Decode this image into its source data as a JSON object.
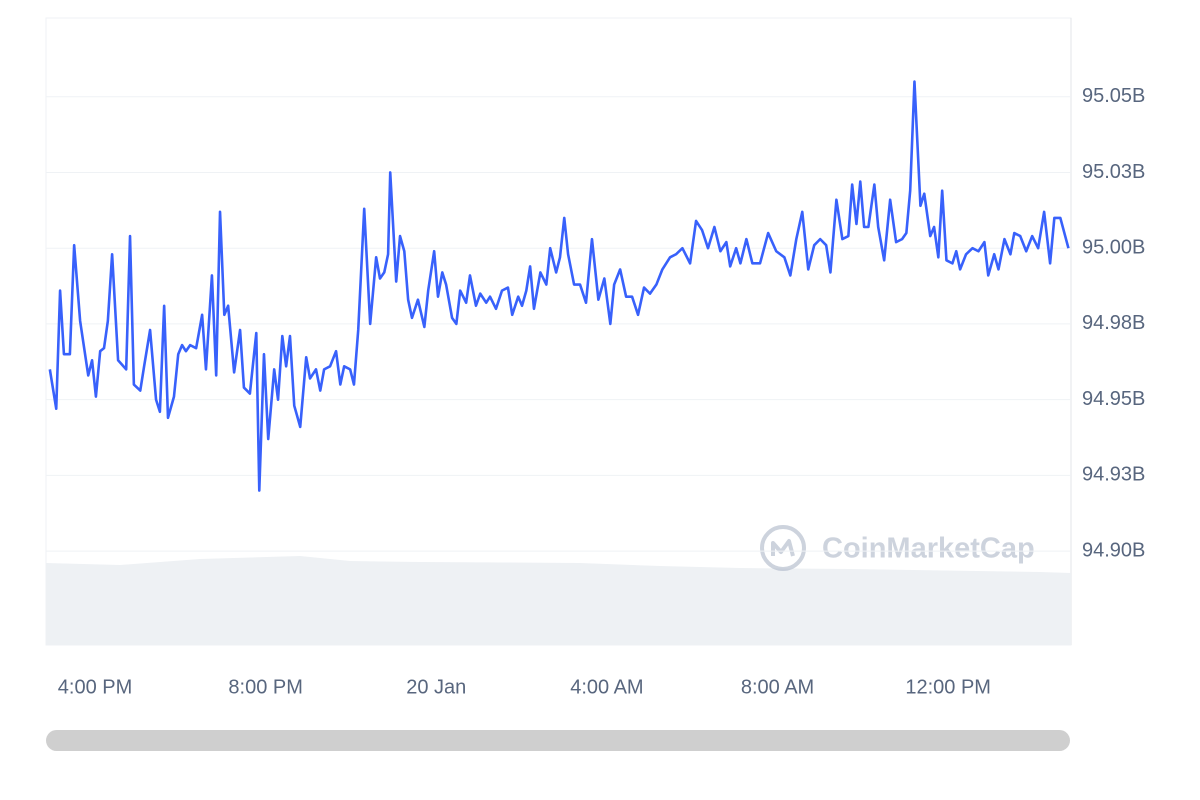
{
  "chart_data": {
    "type": "line",
    "color": "#3861fb",
    "grid": true,
    "watermark": "CoinMarketCap",
    "xlim": [
      14.85,
      38.88
    ],
    "xticks": [
      {
        "value": 16,
        "label": "4:00 PM"
      },
      {
        "value": 20,
        "label": "8:00 PM"
      },
      {
        "value": 24,
        "label": "20 Jan"
      },
      {
        "value": 28,
        "label": "4:00 AM"
      },
      {
        "value": 32,
        "label": "8:00 AM"
      },
      {
        "value": 36,
        "label": "12:00 PM"
      }
    ],
    "ylim": [
      94.869,
      95.076
    ],
    "yticks": [
      {
        "value": 94.9,
        "label": "94.90B"
      },
      {
        "value": 94.925,
        "label": "94.93B"
      },
      {
        "value": 94.95,
        "label": "94.95B"
      },
      {
        "value": 94.975,
        "label": "94.98B"
      },
      {
        "value": 95.0,
        "label": "95.00B"
      },
      {
        "value": 95.025,
        "label": "95.03B"
      },
      {
        "value": 95.05,
        "label": "95.05B"
      }
    ],
    "x": [
      14.94,
      15.09,
      15.18,
      15.27,
      15.41,
      15.51,
      15.65,
      15.84,
      15.93,
      16.02,
      16.12,
      16.21,
      16.3,
      16.4,
      16.54,
      16.73,
      16.82,
      16.91,
      17.06,
      17.15,
      17.29,
      17.43,
      17.52,
      17.62,
      17.71,
      17.85,
      17.95,
      18.04,
      18.13,
      18.23,
      18.37,
      18.51,
      18.6,
      18.74,
      18.84,
      18.93,
      19.03,
      19.12,
      19.26,
      19.4,
      19.49,
      19.63,
      19.78,
      19.85,
      19.96,
      20.06,
      20.2,
      20.29,
      20.39,
      20.48,
      20.57,
      20.67,
      20.81,
      20.95,
      21.04,
      21.18,
      21.28,
      21.37,
      21.51,
      21.65,
      21.75,
      21.84,
      21.98,
      22.07,
      22.17,
      22.31,
      22.45,
      22.59,
      22.68,
      22.78,
      22.87,
      22.92,
      23.06,
      23.15,
      23.25,
      23.34,
      23.43,
      23.57,
      23.72,
      23.81,
      23.95,
      24.04,
      24.14,
      24.23,
      24.37,
      24.47,
      24.56,
      24.7,
      24.79,
      24.93,
      25.03,
      25.17,
      25.26,
      25.4,
      25.54,
      25.68,
      25.78,
      25.92,
      26.01,
      26.11,
      26.2,
      26.29,
      26.44,
      26.58,
      26.67,
      26.81,
      26.9,
      27.0,
      27.09,
      27.23,
      27.37,
      27.51,
      27.65,
      27.8,
      27.94,
      28.08,
      28.17,
      28.31,
      28.45,
      28.59,
      28.73,
      28.87,
      29.01,
      29.16,
      29.3,
      29.48,
      29.62,
      29.77,
      29.95,
      30.09,
      30.23,
      30.37,
      30.52,
      30.66,
      30.8,
      30.89,
      31.03,
      31.13,
      31.27,
      31.41,
      31.59,
      31.78,
      31.97,
      32.16,
      32.3,
      32.44,
      32.58,
      32.72,
      32.86,
      33.0,
      33.14,
      33.24,
      33.38,
      33.52,
      33.66,
      33.75,
      33.85,
      33.94,
      34.03,
      34.13,
      34.27,
      34.36,
      34.5,
      34.64,
      34.78,
      34.92,
      35.02,
      35.11,
      35.21,
      35.35,
      35.44,
      35.58,
      35.67,
      35.77,
      35.86,
      35.96,
      36.1,
      36.19,
      36.28,
      36.42,
      36.57,
      36.71,
      36.85,
      36.94,
      37.08,
      37.18,
      37.32,
      37.46,
      37.55,
      37.69,
      37.83,
      37.97,
      38.11,
      38.25,
      38.39,
      38.49,
      38.63,
      38.82
    ],
    "values": [
      94.96,
      94.947,
      94.986,
      94.965,
      94.965,
      95.001,
      94.976,
      94.958,
      94.963,
      94.951,
      94.966,
      94.967,
      94.976,
      94.998,
      94.963,
      94.96,
      95.004,
      94.955,
      94.953,
      94.961,
      94.973,
      94.95,
      94.946,
      94.981,
      94.944,
      94.951,
      94.965,
      94.968,
      94.966,
      94.968,
      94.967,
      94.978,
      94.96,
      94.991,
      94.958,
      95.012,
      94.978,
      94.981,
      94.959,
      94.973,
      94.954,
      94.952,
      94.972,
      94.92,
      94.965,
      94.937,
      94.96,
      94.95,
      94.971,
      94.961,
      94.971,
      94.948,
      94.941,
      94.964,
      94.957,
      94.96,
      94.953,
      94.96,
      94.961,
      94.966,
      94.955,
      94.961,
      94.96,
      94.955,
      94.973,
      95.013,
      94.975,
      94.997,
      94.99,
      94.992,
      94.998,
      95.025,
      94.989,
      95.004,
      94.999,
      94.983,
      94.977,
      94.983,
      94.974,
      94.986,
      94.999,
      94.984,
      94.992,
      94.988,
      94.977,
      94.975,
      94.986,
      94.982,
      94.991,
      94.981,
      94.985,
      94.982,
      94.984,
      94.98,
      94.986,
      94.987,
      94.978,
      94.984,
      94.981,
      94.986,
      94.994,
      94.98,
      94.992,
      94.988,
      95.0,
      94.992,
      94.997,
      95.01,
      94.998,
      94.988,
      94.988,
      94.982,
      95.003,
      94.983,
      94.99,
      94.975,
      94.988,
      94.993,
      94.984,
      94.984,
      94.978,
      94.987,
      94.985,
      94.988,
      94.993,
      94.997,
      94.998,
      95.0,
      94.995,
      95.009,
      95.006,
      95.0,
      95.007,
      94.999,
      95.002,
      94.994,
      95.0,
      94.995,
      95.003,
      94.995,
      94.995,
      95.005,
      94.999,
      94.997,
      94.991,
      95.003,
      95.012,
      94.993,
      95.001,
      95.003,
      95.001,
      94.992,
      95.016,
      95.003,
      95.004,
      95.021,
      95.008,
      95.022,
      95.007,
      95.007,
      95.021,
      95.007,
      94.996,
      95.016,
      95.002,
      95.003,
      95.005,
      95.019,
      95.055,
      95.014,
      95.018,
      95.004,
      95.007,
      94.997,
      95.019,
      94.996,
      94.995,
      94.999,
      94.993,
      94.998,
      95.0,
      94.999,
      95.002,
      94.991,
      94.998,
      94.993,
      95.003,
      94.998,
      95.005,
      95.004,
      94.999,
      95.004,
      95.0,
      95.012,
      94.995,
      95.01,
      95.01,
      95.0
    ]
  }
}
